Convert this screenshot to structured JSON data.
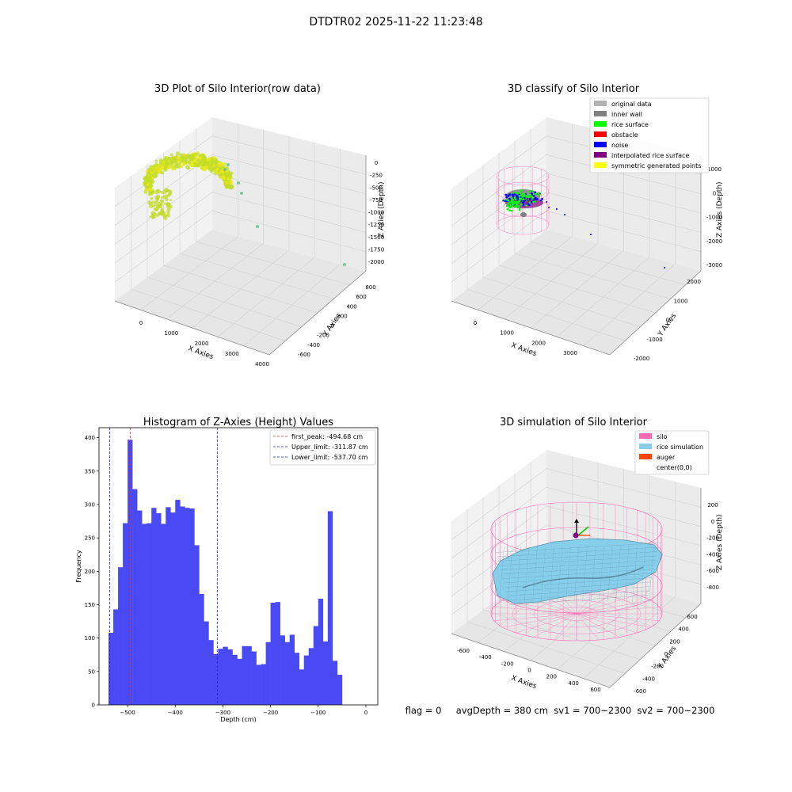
{
  "figure": {
    "suptitle": "DTDTR02 2025-11-22 11:23:48",
    "status_line": "flag = 0     avgDepth = 380 cm  sv1 = 700~2300  sv2 = 700~2300"
  },
  "chart_data": [
    {
      "type": "scatter3d",
      "title": "3D Plot of Silo Interior(row data)",
      "xlabel": "X Axies",
      "ylabel": "Y Axies",
      "zlabel": "Z Axies (Depth)",
      "x_ticks": [
        "0",
        "1000",
        "2000",
        "3000",
        "4000"
      ],
      "y_ticks": [
        "-600",
        "-400",
        "-200",
        "0",
        "200",
        "400",
        "600",
        "800"
      ],
      "z_ticks": [
        "0",
        "-250",
        "-500",
        "-750",
        "-1000",
        "-1250",
        "-1500",
        "-1750",
        "-2000"
      ],
      "colors": {
        "main": "#c2dc2a",
        "core": "#e8e81a",
        "outlier": "#5cbf8a"
      }
    },
    {
      "type": "scatter3d",
      "title": "3D classify of Silo Interior",
      "xlabel": "X Axies",
      "ylabel": "Y Axies",
      "zlabel": "Z Axies (Depth)",
      "x_ticks": [
        "0",
        "1000",
        "2000",
        "3000"
      ],
      "y_ticks": [
        "-2000",
        "-1000",
        "0",
        "1000",
        "2000"
      ],
      "z_ticks": [
        "1000",
        "0",
        "-1000",
        "-2000",
        "-3000"
      ],
      "legend_position": "top-right",
      "legend": [
        {
          "label": "original data",
          "color": "#b3b3b3"
        },
        {
          "label": "inner wall",
          "color": "#808080"
        },
        {
          "label": "rice surface",
          "color": "#00ff00"
        },
        {
          "label": "obstacle",
          "color": "#ff0000"
        },
        {
          "label": "noise",
          "color": "#0000ff"
        },
        {
          "label": "interpolated rice surface",
          "color": "#800080"
        },
        {
          "label": "symmetric generated points",
          "color": "#ffff00"
        }
      ]
    },
    {
      "type": "bar",
      "title": "Histogram of Z-Axies (Height) Values",
      "xlabel": "Depth (cm)",
      "ylabel": "Frequency",
      "xlim": [
        -560,
        25
      ],
      "ylim": [
        0,
        415
      ],
      "bin_start": -540,
      "bin_width": 10,
      "values": [
        108,
        143,
        206,
        272,
        397,
        323,
        291,
        271,
        272,
        295,
        287,
        271,
        296,
        288,
        307,
        297,
        295,
        294,
        239,
        166,
        125,
        97,
        76,
        84,
        87,
        83,
        75,
        69,
        88,
        88,
        80,
        60,
        61,
        94,
        153,
        154,
        104,
        94,
        105,
        78,
        53,
        74,
        85,
        118,
        159,
        95,
        290,
        66,
        45
      ],
      "x_ticks": [
        -500,
        -400,
        -300,
        -200,
        -100,
        0
      ],
      "y_ticks": [
        0,
        50,
        100,
        150,
        200,
        250,
        300,
        350,
        400
      ],
      "bar_color": "#4a4af5",
      "legend_position": "top-right",
      "lines": [
        {
          "label": "first_peak: -494.68 cm",
          "x": -494.68,
          "color": "#e03030"
        },
        {
          "label": "Upper_limit: -311.87 cm",
          "x": -311.87,
          "color": "#2020d0"
        },
        {
          "label": "Lower_limit: -537.70 cm",
          "x": -537.7,
          "color": "#2020d0"
        }
      ]
    },
    {
      "type": "surface3d",
      "title": "3D simulation of Silo Interior",
      "xlabel": "X Axies",
      "ylabel": "Y Axies",
      "zlabel": "Z Axies (Depth)",
      "x_ticks": [
        "-600",
        "-400",
        "-200",
        "0",
        "200",
        "400",
        "600"
      ],
      "y_ticks": [
        "-600",
        "-400",
        "-200",
        "0",
        "200",
        "400",
        "600"
      ],
      "z_ticks": [
        "200",
        "0",
        "-200",
        "-400",
        "-600",
        "-800"
      ],
      "legend_position": "top-right",
      "legend": [
        {
          "label": "silo",
          "color": "#ff69b4"
        },
        {
          "label": "rice simulation",
          "color": "#87ceeb"
        },
        {
          "label": "auger",
          "color": "#ff4500"
        },
        {
          "label": "center(0,0)",
          "color": ""
        }
      ]
    }
  ]
}
